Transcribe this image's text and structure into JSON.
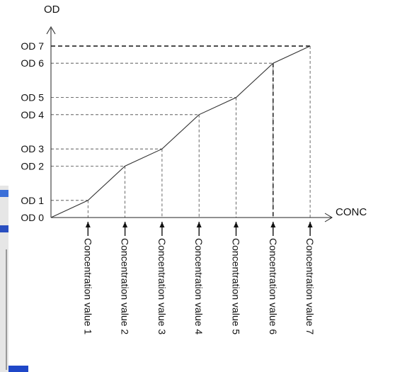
{
  "chart_data": {
    "type": "line",
    "xlabel": "CONC",
    "ylabel": "OD",
    "y_ticks": [
      "OD 0",
      "OD 1",
      "OD 2",
      "OD 3",
      "OD 4",
      "OD 5",
      "OD 6",
      "OD 7"
    ],
    "x_ticks": [
      "Concentration value 1",
      "Concentration value 2",
      "Concentration value 3",
      "Concentration value 4",
      "Concentration value 5",
      "Concentration value 6",
      "Concentration value 7"
    ],
    "x": [
      0,
      1,
      2,
      3,
      4,
      5,
      6,
      7
    ],
    "y": [
      0,
      1,
      3,
      4,
      6,
      7,
      9,
      10
    ],
    "y_tick_values": [
      0,
      1,
      3,
      4,
      6,
      7,
      9,
      10
    ],
    "grid": false,
    "dashed_guides": true,
    "line_color": "#333333"
  }
}
